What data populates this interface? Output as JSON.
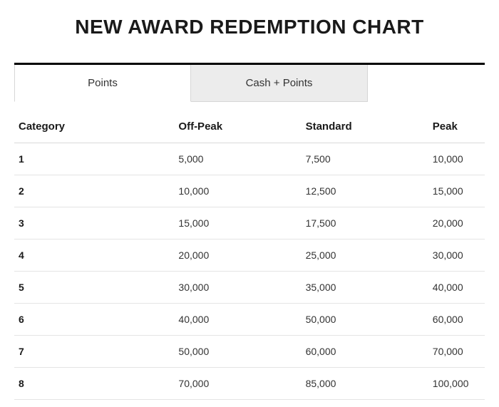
{
  "title": "NEW AWARD REDEMPTION CHART",
  "tabs": {
    "active": "Points",
    "inactive": "Cash + Points"
  },
  "table": {
    "columns": [
      "Category",
      "Off-Peak",
      "Standard",
      "Peak"
    ],
    "rows": [
      [
        "1",
        "5,000",
        "7,500",
        "10,000"
      ],
      [
        "2",
        "10,000",
        "12,500",
        "15,000"
      ],
      [
        "3",
        "15,000",
        "17,500",
        "20,000"
      ],
      [
        "4",
        "20,000",
        "25,000",
        "30,000"
      ],
      [
        "5",
        "30,000",
        "35,000",
        "40,000"
      ],
      [
        "6",
        "40,000",
        "50,000",
        "60,000"
      ],
      [
        "7",
        "50,000",
        "60,000",
        "70,000"
      ],
      [
        "8",
        "70,000",
        "85,000",
        "100,000"
      ]
    ]
  },
  "colors": {
    "background": "#ffffff",
    "text": "#1a1a1a",
    "tab_inactive_bg": "#ececec",
    "border": "#d6d6d6",
    "row_divider": "#e4e4e4",
    "tab_top_bar": "#000000"
  }
}
